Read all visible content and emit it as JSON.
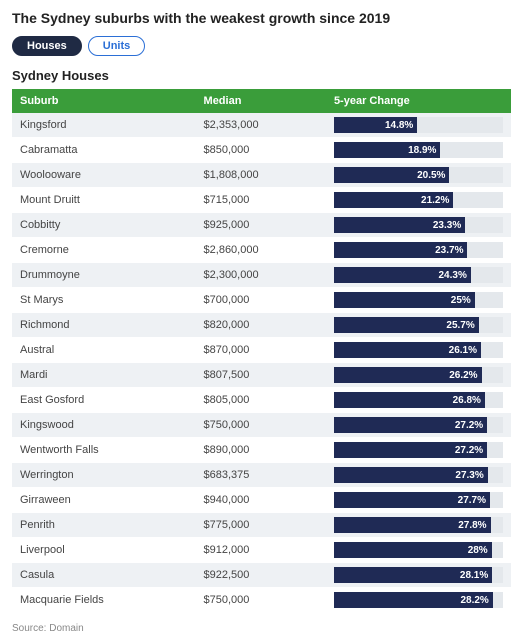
{
  "title": "The Sydney suburbs with the weakest growth since 2019",
  "tabs": [
    {
      "label": "Houses",
      "active": true
    },
    {
      "label": "Units",
      "active": false
    }
  ],
  "tab_style": {
    "active_bg": "#1f2a44",
    "active_text": "#ffffff",
    "active_border": "#1f2a44",
    "inactive_bg": "#ffffff",
    "inactive_text": "#2b6fd6",
    "inactive_border": "#2b6fd6"
  },
  "subtitle": "Sydney Houses",
  "columns": [
    "Suburb",
    "Median",
    "5-year Change"
  ],
  "header_bg": "#3a9d3a",
  "header_text": "#ffffff",
  "row_bg_even": "#eef1f4",
  "row_bg_odd": "#ffffff",
  "bar_bg": "#e4e8ec",
  "bar_fill": "#1f2a55",
  "bar_label_color": "#ffffff",
  "bar_max": 30,
  "rows": [
    {
      "suburb": "Kingsford",
      "median": "$2,353,000",
      "change": 14.8
    },
    {
      "suburb": "Cabramatta",
      "median": "$850,000",
      "change": 18.9
    },
    {
      "suburb": "Woolooware",
      "median": "$1,808,000",
      "change": 20.5
    },
    {
      "suburb": "Mount Druitt",
      "median": "$715,000",
      "change": 21.2
    },
    {
      "suburb": "Cobbitty",
      "median": "$925,000",
      "change": 23.3
    },
    {
      "suburb": "Cremorne",
      "median": "$2,860,000",
      "change": 23.7
    },
    {
      "suburb": "Drummoyne",
      "median": "$2,300,000",
      "change": 24.3
    },
    {
      "suburb": "St Marys",
      "median": "$700,000",
      "change": 25
    },
    {
      "suburb": "Richmond",
      "median": "$820,000",
      "change": 25.7
    },
    {
      "suburb": "Austral",
      "median": "$870,000",
      "change": 26.1
    },
    {
      "suburb": "Mardi",
      "median": "$807,500",
      "change": 26.2
    },
    {
      "suburb": "East Gosford",
      "median": "$805,000",
      "change": 26.8
    },
    {
      "suburb": "Kingswood",
      "median": "$750,000",
      "change": 27.2
    },
    {
      "suburb": "Wentworth Falls",
      "median": "$890,000",
      "change": 27.2
    },
    {
      "suburb": "Werrington",
      "median": "$683,375",
      "change": 27.3
    },
    {
      "suburb": "Girraween",
      "median": "$940,000",
      "change": 27.7
    },
    {
      "suburb": "Penrith",
      "median": "$775,000",
      "change": 27.8
    },
    {
      "suburb": "Liverpool",
      "median": "$912,000",
      "change": 28
    },
    {
      "suburb": "Casula",
      "median": "$922,500",
      "change": 28.1
    },
    {
      "suburb": "Macquarie Fields",
      "median": "$750,000",
      "change": 28.2
    }
  ],
  "source": "Source: Domain"
}
